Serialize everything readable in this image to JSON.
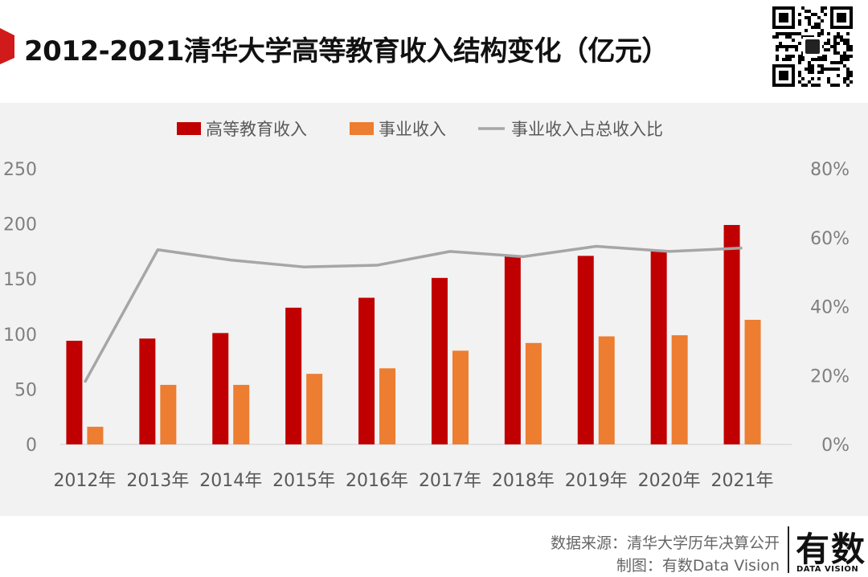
{
  "header": {
    "title": "2012-2021清华大学高等教育收入结构变化（亿元）",
    "accent_color": "#d11a1a"
  },
  "qr_code": {
    "icon": "qr-code-icon"
  },
  "chart_data": {
    "type": "bar",
    "categories": [
      "2012年",
      "2013年",
      "2014年",
      "2015年",
      "2016年",
      "2017年",
      "2018年",
      "2019年",
      "2020年",
      "2021年"
    ],
    "series": [
      {
        "name": "高等教育收入",
        "type": "bar",
        "axis": "left",
        "color": "#c00000",
        "values": [
          94,
          96,
          101,
          124,
          133,
          151,
          171,
          171,
          176,
          199
        ]
      },
      {
        "name": "事业收入",
        "type": "bar",
        "axis": "left",
        "color": "#ed7d31",
        "values": [
          16,
          54,
          54,
          64,
          69,
          85,
          92,
          98,
          99,
          113
        ]
      },
      {
        "name": "事业收入占总收入比",
        "type": "line",
        "axis": "right",
        "color": "#a6a6a6",
        "values": [
          0.18,
          0.565,
          0.535,
          0.515,
          0.52,
          0.56,
          0.545,
          0.575,
          0.56,
          0.57
        ]
      }
    ],
    "y_left": {
      "min": 0,
      "max": 250,
      "ticks": [
        0,
        50,
        100,
        150,
        200,
        250
      ]
    },
    "y_right": {
      "min": 0,
      "max": 0.8,
      "ticks": [
        "0%",
        "20%",
        "40%",
        "60%",
        "80%"
      ]
    },
    "legend_position": "top",
    "grid": false
  },
  "footer": {
    "source": "数据来源：清华大学历年决算公开",
    "credit": "制图：有数Data Vision",
    "brand": "有数",
    "brand_sub": "DATA VISION"
  }
}
